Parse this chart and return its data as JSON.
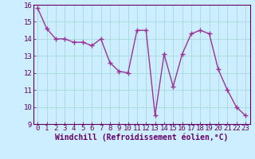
{
  "x": [
    0,
    1,
    2,
    3,
    4,
    5,
    6,
    7,
    8,
    9,
    10,
    11,
    12,
    13,
    14,
    15,
    16,
    17,
    18,
    19,
    20,
    21,
    22,
    23
  ],
  "y": [
    15.8,
    14.6,
    14.0,
    14.0,
    13.8,
    13.8,
    13.6,
    14.0,
    12.6,
    12.1,
    12.0,
    14.5,
    14.5,
    9.5,
    13.1,
    11.2,
    13.1,
    14.3,
    14.5,
    14.3,
    12.2,
    11.0,
    10.0,
    9.5
  ],
  "line_color": "#993399",
  "marker": "+",
  "marker_size": 4,
  "marker_linewidth": 1.0,
  "bg_color": "#cceeff",
  "grid_color": "#aadddd",
  "xlabel": "Windchill (Refroidissement éolien,°C)",
  "xlabel_color": "#660066",
  "ylim": [
    9,
    16
  ],
  "xlim": [
    -0.5,
    23.5
  ],
  "yticks": [
    9,
    10,
    11,
    12,
    13,
    14,
    15,
    16
  ],
  "xticks": [
    0,
    1,
    2,
    3,
    4,
    5,
    6,
    7,
    8,
    9,
    10,
    11,
    12,
    13,
    14,
    15,
    16,
    17,
    18,
    19,
    20,
    21,
    22,
    23
  ],
  "tick_color": "#660066",
  "tick_labelsize": 6.5,
  "xlabel_fontsize": 7.0,
  "line_width": 1.0
}
